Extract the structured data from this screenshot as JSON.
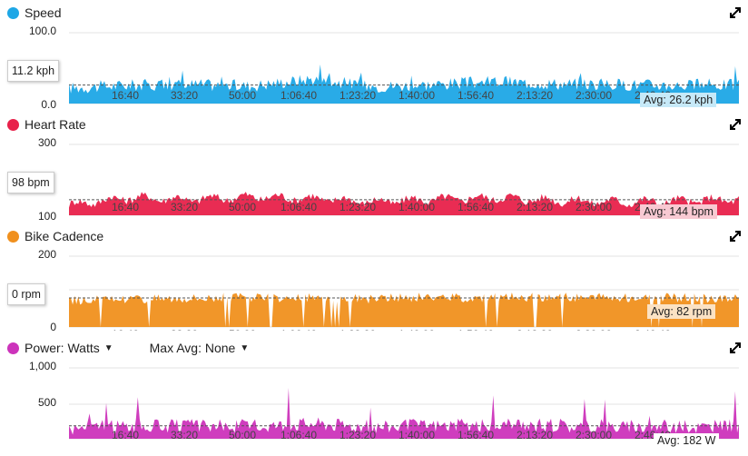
{
  "x_ticks": [
    "16:40",
    "33:20",
    "50:00",
    "1:06:40",
    "1:23:20",
    "1:40:00",
    "1:56:40",
    "2:13:20",
    "2:30:00",
    "2:46:40"
  ],
  "panels": [
    {
      "id": "speed",
      "label": "Speed",
      "color": "#1ea7e6",
      "avg_bg": "#c6e9f8",
      "ymax": "100.0",
      "ymin": "0.0",
      "current": "11.2 kph",
      "avg": "Avg: 26.2 kph"
    },
    {
      "id": "heart",
      "label": "Heart Rate",
      "color": "#e8214a",
      "avg_bg": "#f8c9d2",
      "ymax": "300",
      "ymin": "100",
      "current": "98 bpm",
      "avg": "Avg: 144 bpm"
    },
    {
      "id": "cadence",
      "label": "Bike Cadence",
      "color": "#f0901e",
      "avg_bg": "#fbe2c4",
      "ymax": "200",
      "ymin": "0",
      "current": "0 rpm",
      "avg": "Avg: 82 rpm"
    },
    {
      "id": "power",
      "label": "Power: Watts",
      "max_avg": "Max Avg: None",
      "color": "#cc33bb",
      "avg_bg": "#ffffff",
      "ymax": "1,000",
      "ymid": "500",
      "avg": "Avg: 182 W"
    }
  ],
  "chart_data": [
    {
      "type": "area",
      "title": "Speed",
      "x_unit": "elapsed time",
      "y_range": [
        0,
        100
      ],
      "average": 26.2,
      "unit": "kph",
      "x": [
        "0:00",
        "16:40",
        "33:20",
        "50:00",
        "1:06:40",
        "1:23:20",
        "1:40:00",
        "1:56:40",
        "2:13:20",
        "2:30:00",
        "2:46:40",
        "2:55:00"
      ],
      "values": [
        22,
        26,
        27,
        25,
        35,
        24,
        27,
        31,
        28,
        27,
        26,
        27
      ]
    },
    {
      "type": "area",
      "title": "Heart Rate",
      "y_range": [
        100,
        300
      ],
      "average": 144,
      "unit": "bpm",
      "x": [
        "0:00",
        "16:40",
        "33:20",
        "50:00",
        "1:06:40",
        "1:23:20",
        "1:40:00",
        "1:56:40",
        "2:13:20",
        "2:30:00",
        "2:46:40",
        "2:55:00"
      ],
      "values": [
        130,
        150,
        145,
        152,
        148,
        138,
        145,
        150,
        142,
        138,
        140,
        145
      ]
    },
    {
      "type": "area",
      "title": "Bike Cadence",
      "y_range": [
        0,
        200
      ],
      "average": 82,
      "unit": "rpm",
      "x": [
        "0:00",
        "16:40",
        "33:20",
        "50:00",
        "1:06:40",
        "1:23:20",
        "1:40:00",
        "1:56:40",
        "2:13:20",
        "2:30:00",
        "2:46:40",
        "2:55:00"
      ],
      "values": [
        75,
        80,
        83,
        84,
        82,
        80,
        84,
        83,
        85,
        84,
        83,
        82
      ]
    },
    {
      "type": "area",
      "title": "Power: Watts",
      "y_range": [
        0,
        1000
      ],
      "average": 182,
      "unit": "W",
      "x": [
        "0:00",
        "16:40",
        "33:20",
        "50:00",
        "1:06:40",
        "1:23:20",
        "1:40:00",
        "1:56:40",
        "2:13:20",
        "2:30:00",
        "2:46:40",
        "2:55:00"
      ],
      "values": [
        150,
        190,
        185,
        180,
        230,
        175,
        200,
        190,
        185,
        180,
        175,
        180
      ]
    }
  ]
}
